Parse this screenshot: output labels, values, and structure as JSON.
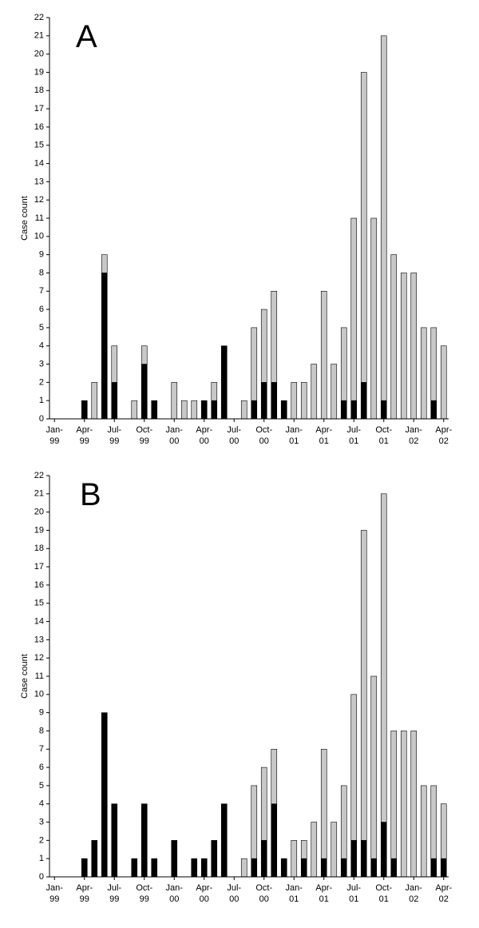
{
  "chart_data": [
    {
      "type": "bar",
      "stacked": true,
      "annotation": "A",
      "ylabel": "Case count",
      "categories": [
        "Jan-99",
        null,
        null,
        "Apr-99",
        null,
        null,
        "Jul-99",
        null,
        null,
        "Oct-99",
        null,
        null,
        "Jan-00",
        null,
        null,
        "Apr-00",
        null,
        null,
        "Jul-00",
        null,
        null,
        "Oct-00",
        null,
        null,
        "Jan-01",
        null,
        null,
        "Apr-01",
        null,
        null,
        "Jul-01",
        null,
        null,
        "Oct-01",
        null,
        null,
        "Jan-02",
        null,
        null,
        "Apr-02"
      ],
      "series": [
        {
          "color": "#000000",
          "values": [
            0,
            0,
            0,
            1,
            0,
            8,
            2,
            0,
            0,
            3,
            1,
            0,
            0,
            0,
            0,
            1,
            1,
            4,
            0,
            0,
            1,
            2,
            2,
            1,
            0,
            0,
            0,
            0,
            0,
            1,
            1,
            2,
            0,
            1,
            0,
            0,
            0,
            0,
            1,
            0
          ]
        },
        {
          "color": "#c8c8c8",
          "values": [
            0,
            0,
            0,
            0,
            2,
            1,
            2,
            0,
            1,
            1,
            0,
            0,
            2,
            1,
            1,
            0,
            1,
            0,
            0,
            1,
            4,
            4,
            5,
            0,
            2,
            2,
            3,
            7,
            3,
            4,
            10,
            17,
            11,
            20,
            9,
            8,
            8,
            5,
            4,
            4
          ]
        }
      ],
      "ylim": [
        0,
        22
      ],
      "yticks": [
        0,
        1,
        2,
        3,
        4,
        5,
        6,
        7,
        8,
        9,
        10,
        11,
        12,
        13,
        14,
        15,
        16,
        17,
        18,
        19,
        20,
        21,
        22
      ]
    },
    {
      "type": "bar",
      "stacked": true,
      "annotation": "B",
      "ylabel": "Case count",
      "categories": [
        "Jan-99",
        null,
        null,
        "Apr-99",
        null,
        null,
        "Jul-99",
        null,
        null,
        "Oct-99",
        null,
        null,
        "Jan-00",
        null,
        null,
        "Apr-00",
        null,
        null,
        "Jul-00",
        null,
        null,
        "Oct-00",
        null,
        null,
        "Jan-01",
        null,
        null,
        "Apr-01",
        null,
        null,
        "Jul-01",
        null,
        null,
        "Oct-01",
        null,
        null,
        "Jan-02",
        null,
        null,
        "Apr-02"
      ],
      "series": [
        {
          "color": "#000000",
          "values": [
            0,
            0,
            0,
            1,
            2,
            9,
            4,
            0,
            1,
            4,
            1,
            0,
            2,
            0,
            1,
            1,
            2,
            4,
            0,
            0,
            1,
            2,
            4,
            1,
            0,
            1,
            0,
            1,
            0,
            1,
            2,
            2,
            1,
            3,
            1,
            0,
            0,
            0,
            1,
            1
          ]
        },
        {
          "color": "#c8c8c8",
          "values": [
            0,
            0,
            0,
            0,
            0,
            0,
            0,
            0,
            0,
            0,
            0,
            0,
            0,
            0,
            0,
            0,
            0,
            0,
            0,
            1,
            4,
            4,
            3,
            0,
            2,
            1,
            3,
            6,
            3,
            4,
            8,
            17,
            10,
            18,
            7,
            8,
            8,
            5,
            4,
            3
          ]
        }
      ],
      "ylim": [
        0,
        22
      ],
      "yticks": [
        0,
        1,
        2,
        3,
        4,
        5,
        6,
        7,
        8,
        9,
        10,
        11,
        12,
        13,
        14,
        15,
        16,
        17,
        18,
        19,
        20,
        21,
        22
      ]
    }
  ]
}
